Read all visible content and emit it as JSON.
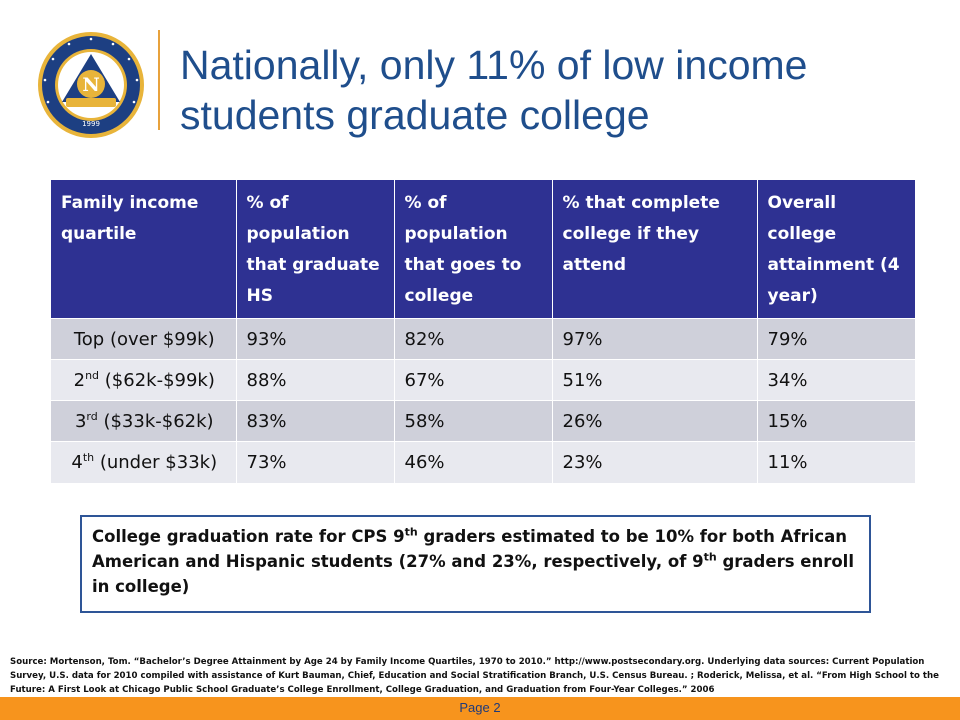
{
  "logo": {
    "ring_text": "NOBLE NETWORK OF CHARTER SCHOOLS",
    "letter": "N",
    "banner": "TRUTH · DISCIPLINA · VERITAS",
    "year": "1999"
  },
  "title": "Nationally, only 11% of low income students graduate college",
  "table": {
    "headers": [
      "Family income quartile",
      "% of population that graduate HS",
      "% of population that goes to college",
      "% that complete college if they attend",
      "Overall college attainment (4 year)"
    ],
    "rows": [
      {
        "quartile_main": "Top (over $99k)",
        "quartile_sup": "",
        "quartile_rest": "",
        "hs": "93%",
        "college": "82%",
        "complete": "97%",
        "overall": "79%"
      },
      {
        "quartile_main": "2",
        "quartile_sup": "nd",
        "quartile_rest": " ($62k-$99k)",
        "hs": "88%",
        "college": "67%",
        "complete": "51%",
        "overall": "34%"
      },
      {
        "quartile_main": "3",
        "quartile_sup": "rd",
        "quartile_rest": " ($33k-$62k)",
        "hs": "83%",
        "college": "58%",
        "complete": "26%",
        "overall": "15%"
      },
      {
        "quartile_main": "4",
        "quartile_sup": "th",
        "quartile_rest": " (under $33k)",
        "hs": "73%",
        "college": "46%",
        "complete": "23%",
        "overall": "11%"
      }
    ]
  },
  "callout": {
    "part1": "College graduation rate for CPS 9",
    "sup1": "th",
    "part2": " graders estimated to be 10% for both African American and Hispanic students (27% and 23%, respectively, of 9",
    "sup2": "th",
    "part3": " graders enroll in college)"
  },
  "source": "Source: Mortenson, Tom. “Bachelor’s Degree Attainment by Age 24 by Family Income Quartiles, 1970 to 2010.” http://www.postsecondary.org. Underlying data sources: Current Population Survey, U.S. data for 2010 compiled with assistance of Kurt Bauman, Chief, Education and Social Stratification Branch, U.S. Census Bureau. ; Roderick, Melissa, et al. “From High School to the Future: A First Look at Chicago Public School Graduate’s College Enrollment, College Graduation, and Graduation from Four-Year Colleges.” 2006",
  "footer": {
    "page_label": "Page  2"
  },
  "colors": {
    "title": "#1f4e8c",
    "header_bg": "#2e3192",
    "row_dark": "#cfd0da",
    "row_light": "#e8e9ef",
    "footer_bar": "#f7941d",
    "callout_border": "#2e5597",
    "seal_gold": "#e8b43a",
    "seal_navy": "#1d3f82"
  }
}
